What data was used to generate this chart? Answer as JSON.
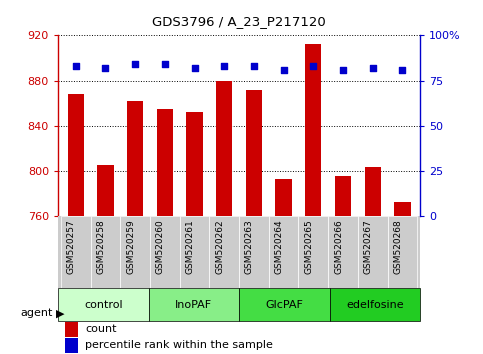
{
  "title": "GDS3796 / A_23_P217120",
  "samples": [
    "GSM520257",
    "GSM520258",
    "GSM520259",
    "GSM520260",
    "GSM520261",
    "GSM520262",
    "GSM520263",
    "GSM520264",
    "GSM520265",
    "GSM520266",
    "GSM520267",
    "GSM520268"
  ],
  "bar_values": [
    868,
    805,
    862,
    855,
    852,
    880,
    872,
    793,
    912,
    795,
    803,
    772
  ],
  "percentile_values": [
    83,
    82,
    84,
    84,
    82,
    83,
    83,
    81,
    83,
    81,
    82,
    81
  ],
  "ylim_left": [
    760,
    920
  ],
  "ylim_right": [
    0,
    100
  ],
  "yticks_left": [
    760,
    800,
    840,
    880,
    920
  ],
  "yticks_right": [
    0,
    25,
    50,
    75,
    100
  ],
  "bar_color": "#cc0000",
  "dot_color": "#0000cc",
  "groups": [
    {
      "label": "control",
      "start": 0,
      "end": 3,
      "color": "#ccffcc"
    },
    {
      "label": "InoPAF",
      "start": 3,
      "end": 6,
      "color": "#88ee88"
    },
    {
      "label": "GlcPAF",
      "start": 6,
      "end": 9,
      "color": "#44dd44"
    },
    {
      "label": "edelfosine",
      "start": 9,
      "end": 12,
      "color": "#22cc22"
    }
  ],
  "left_tick_color": "#cc0000",
  "right_tick_color": "#0000cc",
  "sample_bg_color": "#cccccc",
  "agent_label": "agent",
  "legend_count_label": "count",
  "legend_pct_label": "percentile rank within the sample"
}
